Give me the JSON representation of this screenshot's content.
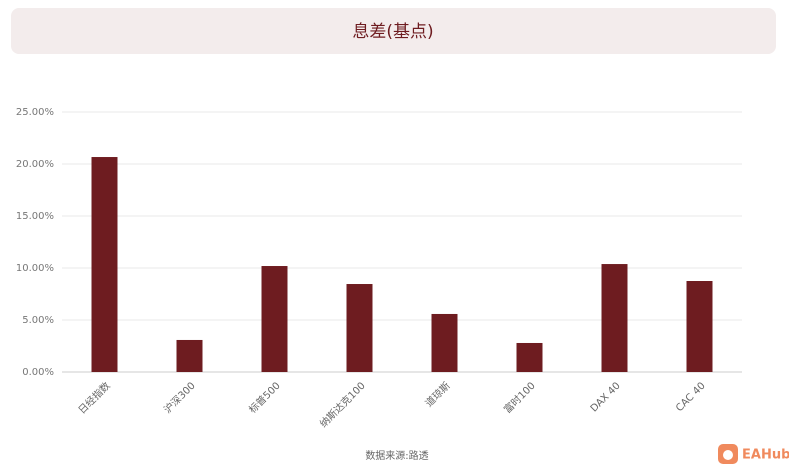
{
  "chart_data": {
    "type": "bar",
    "title": "息差(基点)",
    "categories": [
      "日经指数",
      "沪深300",
      "标普500",
      "纳斯达克100",
      "道琼斯",
      "富时100",
      "DAX 40",
      "CAC 40"
    ],
    "values": [
      20.67,
      3.08,
      10.19,
      8.46,
      5.58,
      2.79,
      10.38,
      8.75
    ],
    "color": "#6e1c20",
    "ylim": [
      0,
      25
    ],
    "yticks": [
      {
        "value": 0,
        "label": "0.00%"
      },
      {
        "value": 5,
        "label": "5.00%"
      },
      {
        "value": 10,
        "label": "10.00%"
      },
      {
        "value": 15,
        "label": "15.00%"
      },
      {
        "value": 20,
        "label": "20.00%"
      },
      {
        "value": 25,
        "label": "25.00%"
      }
    ],
    "grid": true,
    "source": "数据来源:路透",
    "logo": "EAHub"
  }
}
